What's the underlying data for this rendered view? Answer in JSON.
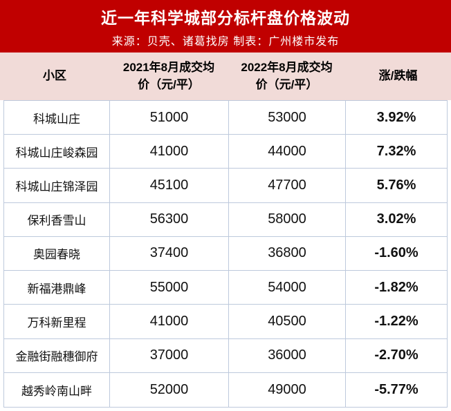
{
  "banner": {
    "title": "近一年科学城部分标杆盘价格波动",
    "subtitle": "来源：贝壳、诸葛找房 制表：广州楼市发布"
  },
  "colors": {
    "banner_bg": "#c00000",
    "banner_text": "#ffffff",
    "header_bg": "#f1dbd8",
    "grid_line": "#bdc9dc",
    "cell_text": "#111111"
  },
  "table": {
    "columns": {
      "community": "小区",
      "price_aug_2021": "2021年8月成交均价（元/平）",
      "price_aug_2022": "2022年8月成交均价（元/平）",
      "change": "涨/跌幅"
    },
    "rows": [
      {
        "community": "科城山庄",
        "price_aug_2021": "51000",
        "price_aug_2022": "53000",
        "change": "3.92%"
      },
      {
        "community": "科城山庄峻森园",
        "price_aug_2021": "41000",
        "price_aug_2022": "44000",
        "change": "7.32%"
      },
      {
        "community": "科城山庄锦泽园",
        "price_aug_2021": "45100",
        "price_aug_2022": "47700",
        "change": "5.76%"
      },
      {
        "community": "保利香雪山",
        "price_aug_2021": "56300",
        "price_aug_2022": "58000",
        "change": "3.02%"
      },
      {
        "community": "奥园春晓",
        "price_aug_2021": "37400",
        "price_aug_2022": "36800",
        "change": "-1.60%"
      },
      {
        "community": "新福港鼎峰",
        "price_aug_2021": "55000",
        "price_aug_2022": "54000",
        "change": "-1.82%"
      },
      {
        "community": "万科新里程",
        "price_aug_2021": "41000",
        "price_aug_2022": "40500",
        "change": "-1.22%"
      },
      {
        "community": "金融街融穗御府",
        "price_aug_2021": "37000",
        "price_aug_2022": "36000",
        "change": "-2.70%"
      },
      {
        "community": "越秀岭南山畔",
        "price_aug_2021": "52000",
        "price_aug_2022": "49000",
        "change": "-5.77%"
      }
    ]
  },
  "chart_data": {
    "type": "table",
    "title": "近一年科学城部分标杆盘价格波动",
    "source": "来源：贝壳、诸葛找房 制表：广州楼市发布",
    "columns": [
      "小区",
      "2021年8月成交均价（元/平）",
      "2022年8月成交均价（元/平）",
      "涨/跌幅"
    ],
    "rows": [
      [
        "科城山庄",
        51000,
        53000,
        "3.92%"
      ],
      [
        "科城山庄峻森园",
        41000,
        44000,
        "7.32%"
      ],
      [
        "科城山庄锦泽园",
        45100,
        47700,
        "5.76%"
      ],
      [
        "保利香雪山",
        56300,
        58000,
        "3.02%"
      ],
      [
        "奥园春晓",
        37400,
        36800,
        "-1.60%"
      ],
      [
        "新福港鼎峰",
        55000,
        54000,
        "-1.82%"
      ],
      [
        "万科新里程",
        41000,
        40500,
        "-1.22%"
      ],
      [
        "金融街融穗御府",
        37000,
        36000,
        "-2.70%"
      ],
      [
        "越秀岭南山畔",
        52000,
        49000,
        "-5.77%"
      ]
    ]
  }
}
